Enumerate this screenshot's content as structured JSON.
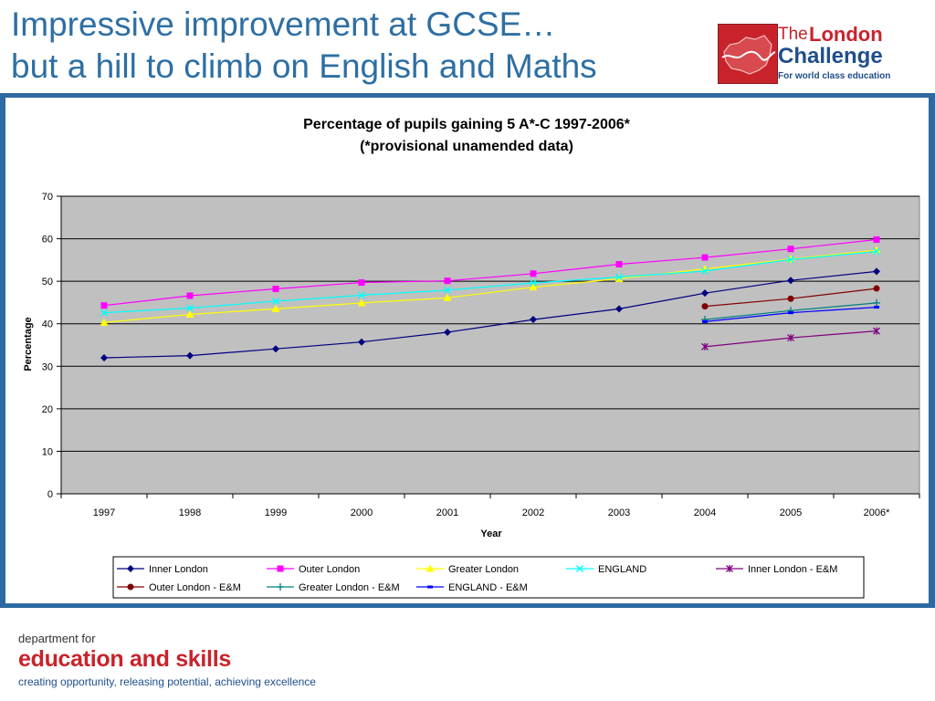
{
  "slide": {
    "title_line1": "Impressive improvement at GCSE…",
    "title_line2": "but a hill to climb on English and Maths"
  },
  "logo": {
    "the": "The",
    "london": "London",
    "challenge": "Challenge",
    "tagline": "For world class education"
  },
  "footer": {
    "department": "department for",
    "name": "education and skills",
    "tagline": "creating opportunity, releasing potential, achieving excellence"
  },
  "colors": {
    "title_blue": "#2e6fa3",
    "band_blue": "#2e6aa1",
    "plot_bg": "#c0c0c0",
    "brand_red": "#c8232b",
    "brand_blue": "#1f4e8c"
  },
  "chart_data": {
    "type": "line",
    "title": "Percentage of pupils gaining 5 A*-C 1997-2006*",
    "subtitle": "(*provisional unamended data)",
    "xlabel": "Year",
    "ylabel": "Percentage",
    "ylim": [
      0,
      70
    ],
    "yticks": [
      0,
      10,
      20,
      30,
      40,
      50,
      60,
      70
    ],
    "grid": true,
    "legend_position": "bottom",
    "categories": [
      "1997",
      "1998",
      "1999",
      "2000",
      "2001",
      "2002",
      "2003",
      "2004",
      "2005",
      "2006*"
    ],
    "series": [
      {
        "name": "Inner London",
        "color": "#000080",
        "marker": "diamond",
        "values": [
          32.0,
          32.5,
          34.1,
          35.7,
          38.0,
          41.0,
          43.5,
          47.2,
          50.2,
          52.3
        ]
      },
      {
        "name": "Outer London",
        "color": "#ff00ff",
        "marker": "square",
        "values": [
          44.3,
          46.6,
          48.2,
          49.7,
          50.1,
          51.8,
          54.0,
          55.6,
          57.6,
          59.8
        ]
      },
      {
        "name": "Greater London",
        "color": "#ffff00",
        "marker": "triangle",
        "values": [
          40.3,
          42.2,
          43.5,
          44.9,
          46.1,
          48.6,
          50.6,
          52.9,
          55.2,
          57.3
        ]
      },
      {
        "name": "ENGLAND",
        "color": "#00ffff",
        "marker": "x",
        "values": [
          42.6,
          43.7,
          45.3,
          46.7,
          47.9,
          49.6,
          51.0,
          52.4,
          55.1,
          57.0
        ]
      },
      {
        "name": "Inner London - E&M",
        "color": "#800080",
        "marker": "star",
        "values": [
          null,
          null,
          null,
          null,
          null,
          null,
          null,
          34.6,
          36.7,
          38.3
        ]
      },
      {
        "name": "Outer London - E&M",
        "color": "#800000",
        "marker": "circle",
        "values": [
          null,
          null,
          null,
          null,
          null,
          null,
          null,
          44.1,
          45.9,
          48.3
        ]
      },
      {
        "name": "Greater London - E&M",
        "color": "#008080",
        "marker": "plus",
        "values": [
          null,
          null,
          null,
          null,
          null,
          null,
          null,
          41.0,
          43.1,
          44.9
        ]
      },
      {
        "name": "ENGLAND - E&M",
        "color": "#0000ff",
        "marker": "dash",
        "values": [
          null,
          null,
          null,
          null,
          null,
          null,
          null,
          40.5,
          42.6,
          43.9
        ]
      }
    ]
  }
}
